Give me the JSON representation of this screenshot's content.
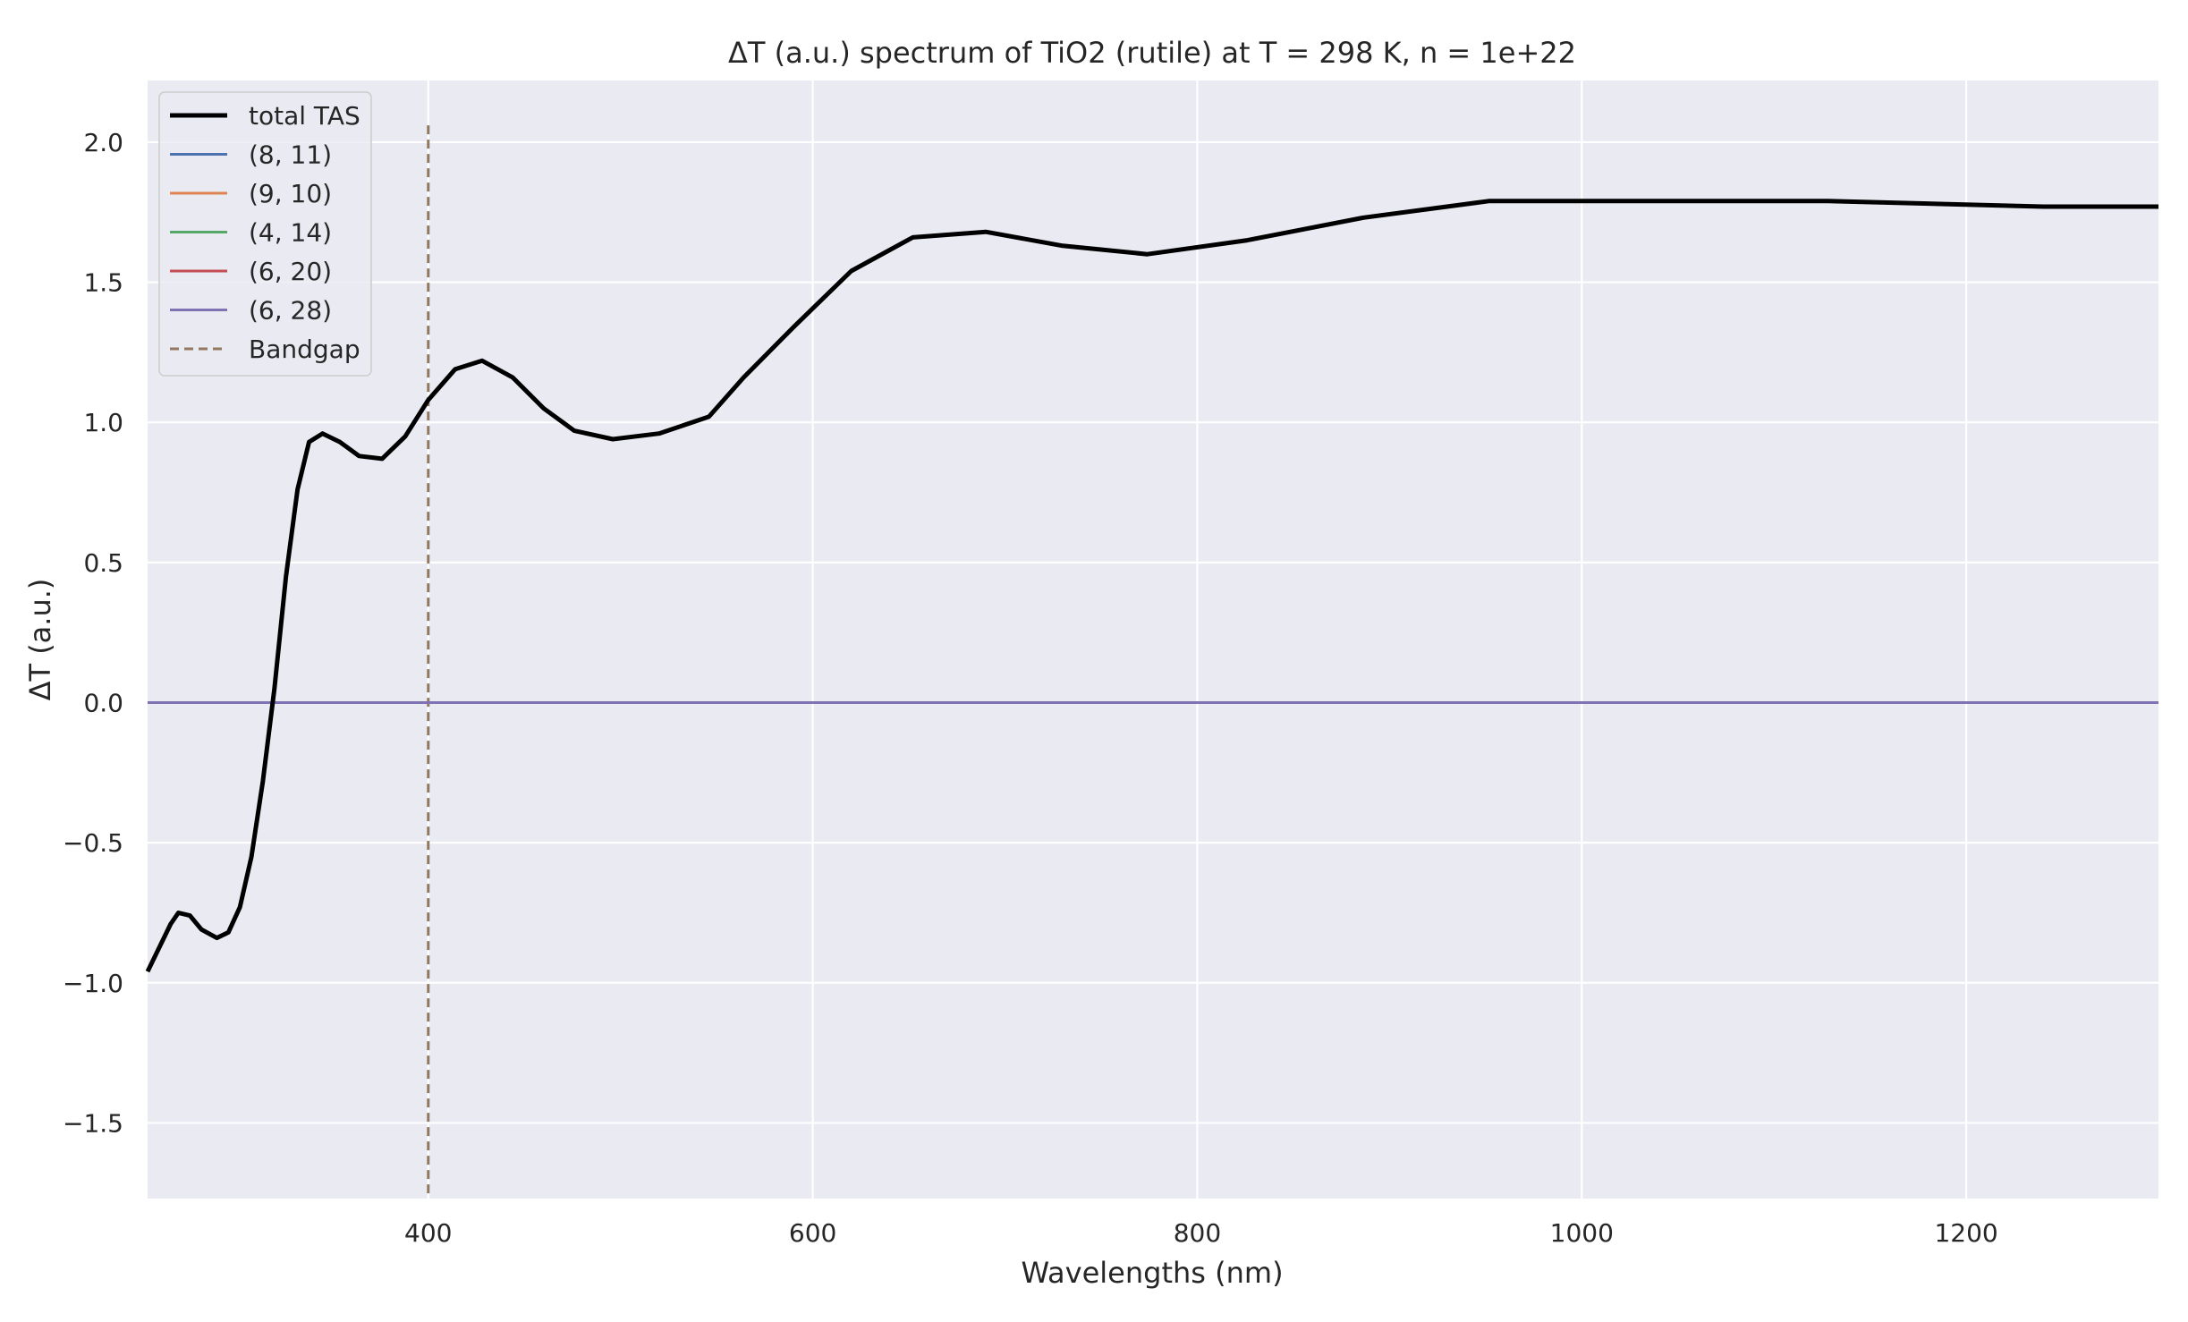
{
  "chart_data": {
    "type": "line",
    "title": "ΔT (a.u.) spectrum of TiO2 (rutile) at T = 298 K, n = 1e+22",
    "xlabel": "Wavelengths (nm)",
    "ylabel": "ΔT (a.u.)",
    "xlim": [
      254,
      1300
    ],
    "ylim": [
      -1.77,
      2.22
    ],
    "x_ticks": [
      400,
      600,
      800,
      1000,
      1200
    ],
    "y_ticks": [
      -1.5,
      -1.0,
      -0.5,
      0.0,
      0.5,
      1.0,
      1.5,
      2.0
    ],
    "x_tick_labels": [
      "400",
      "600",
      "800",
      "1000",
      "1200"
    ],
    "y_tick_labels": [
      "−1.5",
      "−1.0",
      "−0.5",
      "0.0",
      "0.5",
      "1.0",
      "1.5",
      "2.0"
    ],
    "grid": true,
    "background": "#eaeaf2",
    "legend_position": "upper-left",
    "series": [
      {
        "name": "total TAS",
        "color": "#000000",
        "x": [
          254,
          266,
          270,
          276,
          282,
          290,
          296,
          302,
          308,
          314,
          320,
          326,
          332,
          338,
          345,
          354,
          364,
          376,
          388,
          400,
          414,
          428,
          444,
          460,
          476,
          496,
          520,
          546,
          564,
          590,
          620,
          652,
          690,
          730,
          774,
          826,
          886,
          952,
          1032,
          1128,
          1240,
          1300
        ],
        "y": [
          -0.96,
          -0.79,
          -0.75,
          -0.76,
          -0.81,
          -0.84,
          -0.82,
          -0.73,
          -0.55,
          -0.28,
          0.05,
          0.45,
          0.76,
          0.93,
          0.96,
          0.93,
          0.88,
          0.87,
          0.95,
          1.08,
          1.19,
          1.22,
          1.16,
          1.05,
          0.97,
          0.94,
          0.96,
          1.02,
          1.16,
          1.34,
          1.54,
          1.66,
          1.68,
          1.63,
          1.6,
          1.65,
          1.73,
          1.79,
          1.79,
          1.79,
          1.77,
          1.77
        ]
      },
      {
        "name": "(8, 11)",
        "color": "#4c72b0",
        "x": [
          254,
          1300
        ],
        "y": [
          0,
          0
        ]
      },
      {
        "name": "(9, 10)",
        "color": "#dd8452",
        "x": [
          254,
          1300
        ],
        "y": [
          0,
          0
        ]
      },
      {
        "name": "(4, 14)",
        "color": "#55a868",
        "x": [
          254,
          1300
        ],
        "y": [
          0,
          0
        ]
      },
      {
        "name": "(6, 20)",
        "color": "#c44e52",
        "x": [
          254,
          1300
        ],
        "y": [
          0,
          0
        ]
      },
      {
        "name": "(6, 28)",
        "color": "#8172b3",
        "x": [
          254,
          1300
        ],
        "y": [
          0,
          0
        ]
      }
    ],
    "vlines": [
      {
        "name": "Bandgap",
        "color": "#937860",
        "style": "dashed",
        "x": 400,
        "y_range": [
          -1.77,
          2.06
        ]
      }
    ]
  }
}
